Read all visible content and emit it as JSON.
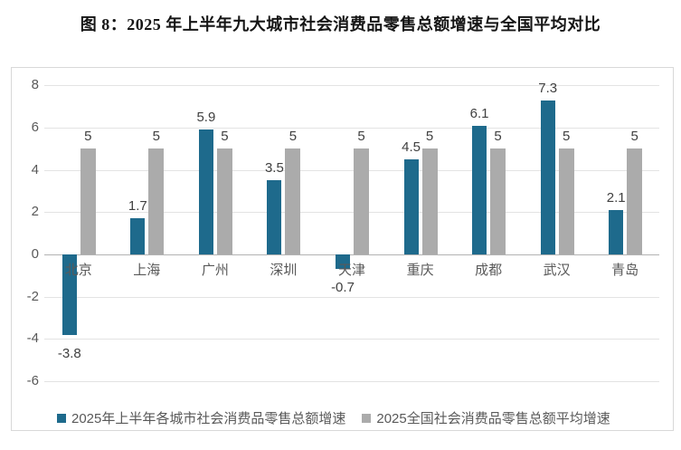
{
  "title": "图 8：2025 年上半年九大城市社会消费品零售总额增速与全国平均对比",
  "chart_data": {
    "type": "bar",
    "title": "图 8：2025 年上半年九大城市社会消费品零售总额增速与全国平均对比",
    "categories": [
      "北京",
      "上海",
      "广州",
      "深圳",
      "天津",
      "重庆",
      "成都",
      "武汉",
      "青岛"
    ],
    "series": [
      {
        "name": "2025年上半年各城市社会消费品零售总额增速",
        "color": "#1E6A8C",
        "values": [
          -3.8,
          1.7,
          5.9,
          3.5,
          -0.7,
          4.5,
          6.1,
          7.3,
          2.1
        ]
      },
      {
        "name": "2025全国社会消费品零售总额平均增速",
        "color": "#ABABAB",
        "values": [
          5,
          5,
          5,
          5,
          5,
          5,
          5,
          5,
          5
        ]
      }
    ],
    "xlabel": "",
    "ylabel": "",
    "ylim": [
      -6,
      8
    ],
    "yticks": [
      8,
      6,
      4,
      2,
      0,
      -2,
      -4,
      -6
    ],
    "grid": true,
    "legend_position": "bottom",
    "colors": {
      "gridline": "#e3e3e3",
      "axis_line": "#b3b3b3",
      "tick_text": "#595959",
      "value_text": "#404040",
      "panel_border": "#d8d8d8",
      "title_text": "#151515"
    }
  }
}
